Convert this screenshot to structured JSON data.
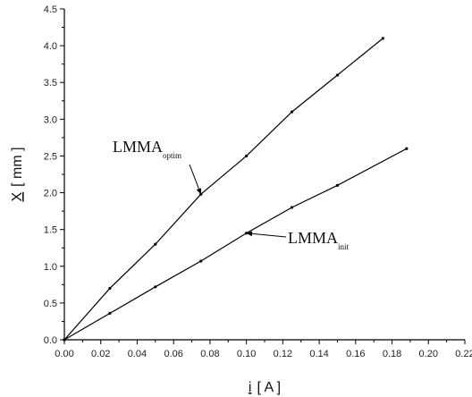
{
  "chart_data": {
    "type": "line",
    "xlabel_main": "i",
    "xlabel_unit": "[ A ]",
    "ylabel_main": "X",
    "ylabel_unit": "[ mm ]",
    "xlim": [
      0.0,
      0.22
    ],
    "ylim": [
      0.0,
      4.5
    ],
    "x_ticks": [
      "0.00",
      "0.02",
      "0.04",
      "0.06",
      "0.08",
      "0.10",
      "0.12",
      "0.14",
      "0.16",
      "0.18",
      "0.20",
      "0.22"
    ],
    "y_ticks": [
      "0.0",
      "0.5",
      "1.0",
      "1.5",
      "2.0",
      "2.5",
      "3.0",
      "3.5",
      "4.0",
      "4.5"
    ],
    "grid": false,
    "series": [
      {
        "name": "LMMA_optim",
        "x": [
          0.0,
          0.025,
          0.05,
          0.075,
          0.1,
          0.125,
          0.15,
          0.175
        ],
        "y": [
          0.0,
          0.7,
          1.3,
          1.98,
          2.5,
          3.1,
          3.6,
          4.1
        ]
      },
      {
        "name": "LMMA_init",
        "x": [
          0.0,
          0.025,
          0.05,
          0.075,
          0.1,
          0.125,
          0.15,
          0.188
        ],
        "y": [
          0.0,
          0.36,
          0.72,
          1.07,
          1.45,
          1.8,
          2.1,
          2.6
        ]
      }
    ],
    "annotations": [
      {
        "name": "annotation-lmma-optim",
        "main": "LMMA",
        "sub": "optim",
        "target_x": 0.075,
        "target_y": 1.98
      },
      {
        "name": "annotation-lmma-init",
        "main": "LMMA",
        "sub": "init",
        "target_x": 0.1,
        "target_y": 1.45
      }
    ]
  }
}
